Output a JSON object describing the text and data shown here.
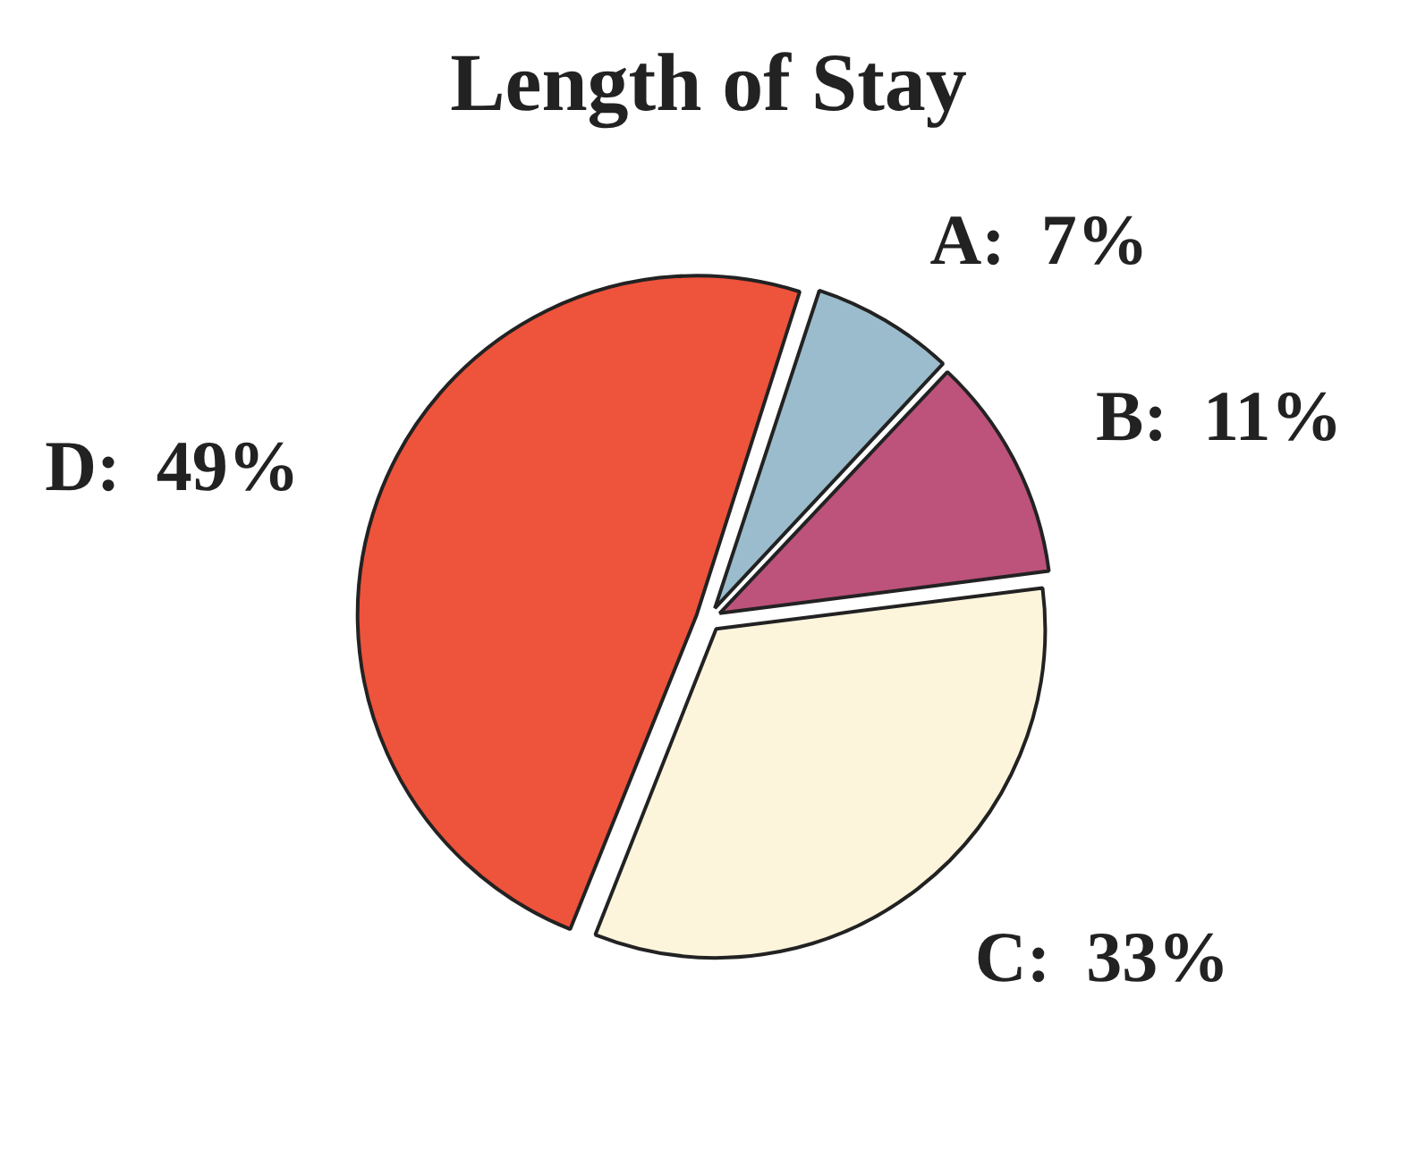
{
  "chart_data": {
    "type": "pie",
    "title": "Length of Stay",
    "categories": [
      "A",
      "B",
      "C",
      "D"
    ],
    "values": [
      7,
      11,
      33,
      49
    ],
    "value_labels": [
      "7%",
      "11%",
      "33%",
      "49%"
    ],
    "colors": [
      "#9bbccc",
      "#bd527b",
      "#fcf5dc",
      "#ee533b"
    ],
    "legend": false
  }
}
